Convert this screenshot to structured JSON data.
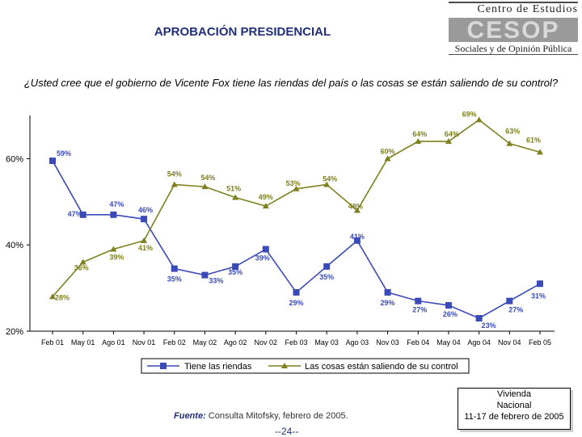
{
  "header": {
    "title": "APROBACIÓN PRESIDENCIAL"
  },
  "logo": {
    "top_text": "Centro de Estudios",
    "brand": "CESOP",
    "sub_text": "Sociales y de Opinión Pública"
  },
  "question": "¿Usted cree que el gobierno de Vicente Fox tiene las riendas del país o las cosas se están saliendo de su control?",
  "chart_data": {
    "type": "line",
    "categories": [
      "Feb 01",
      "May 01",
      "Ago 01",
      "Nov 01",
      "Feb 02",
      "May 02",
      "Ago 02",
      "Nov 02",
      "Feb 03",
      "May 03",
      "Ago 03",
      "Nov 03",
      "Feb 04",
      "May 04",
      "Ago 04",
      "Nov 04",
      "Feb 05"
    ],
    "ylim": [
      20,
      70
    ],
    "yticks": [
      20,
      40,
      60
    ],
    "ytick_labels": [
      "20%",
      "40%",
      "60%"
    ],
    "grid": false,
    "legend_position": "bottom",
    "series": [
      {
        "name": "Tiene las riendas",
        "color": "#3a4bb8",
        "marker": "square",
        "values": [
          59.5,
          47,
          47,
          46,
          34.5,
          33,
          35,
          39,
          29,
          35,
          41,
          29,
          27,
          26,
          23,
          27,
          31
        ],
        "labels": [
          "59%",
          "47%",
          "47%",
          "46%",
          "35%",
          "33%",
          "35%",
          "39%",
          "29%",
          "35%",
          "41%",
          "29%",
          "27%",
          "26%",
          "23%",
          "27%",
          "31%"
        ]
      },
      {
        "name": "Las cosas están saliendo de su control",
        "color": "#7f7f1f",
        "marker": "triangle",
        "values": [
          28,
          36,
          39,
          41,
          54,
          53.5,
          51,
          49,
          53,
          54,
          48,
          60,
          64,
          64,
          69,
          63.5,
          61.5
        ],
        "labels": [
          "28%",
          "36%",
          "39%",
          "41%",
          "54%",
          "54%",
          "51%",
          "49%",
          "53%",
          "54%",
          "48%",
          "60%",
          "64%",
          "64%",
          "69%",
          "63%",
          "61%"
        ]
      }
    ]
  },
  "footer": {
    "source_label": "Fuente:",
    "source_text": "Consulta Mitofsky, febrero de 2005.",
    "page_number": "--24--",
    "survey_line1": "Vivienda",
    "survey_line2": "Nacional",
    "survey_line3": "11-17 de febrero de 2005"
  }
}
